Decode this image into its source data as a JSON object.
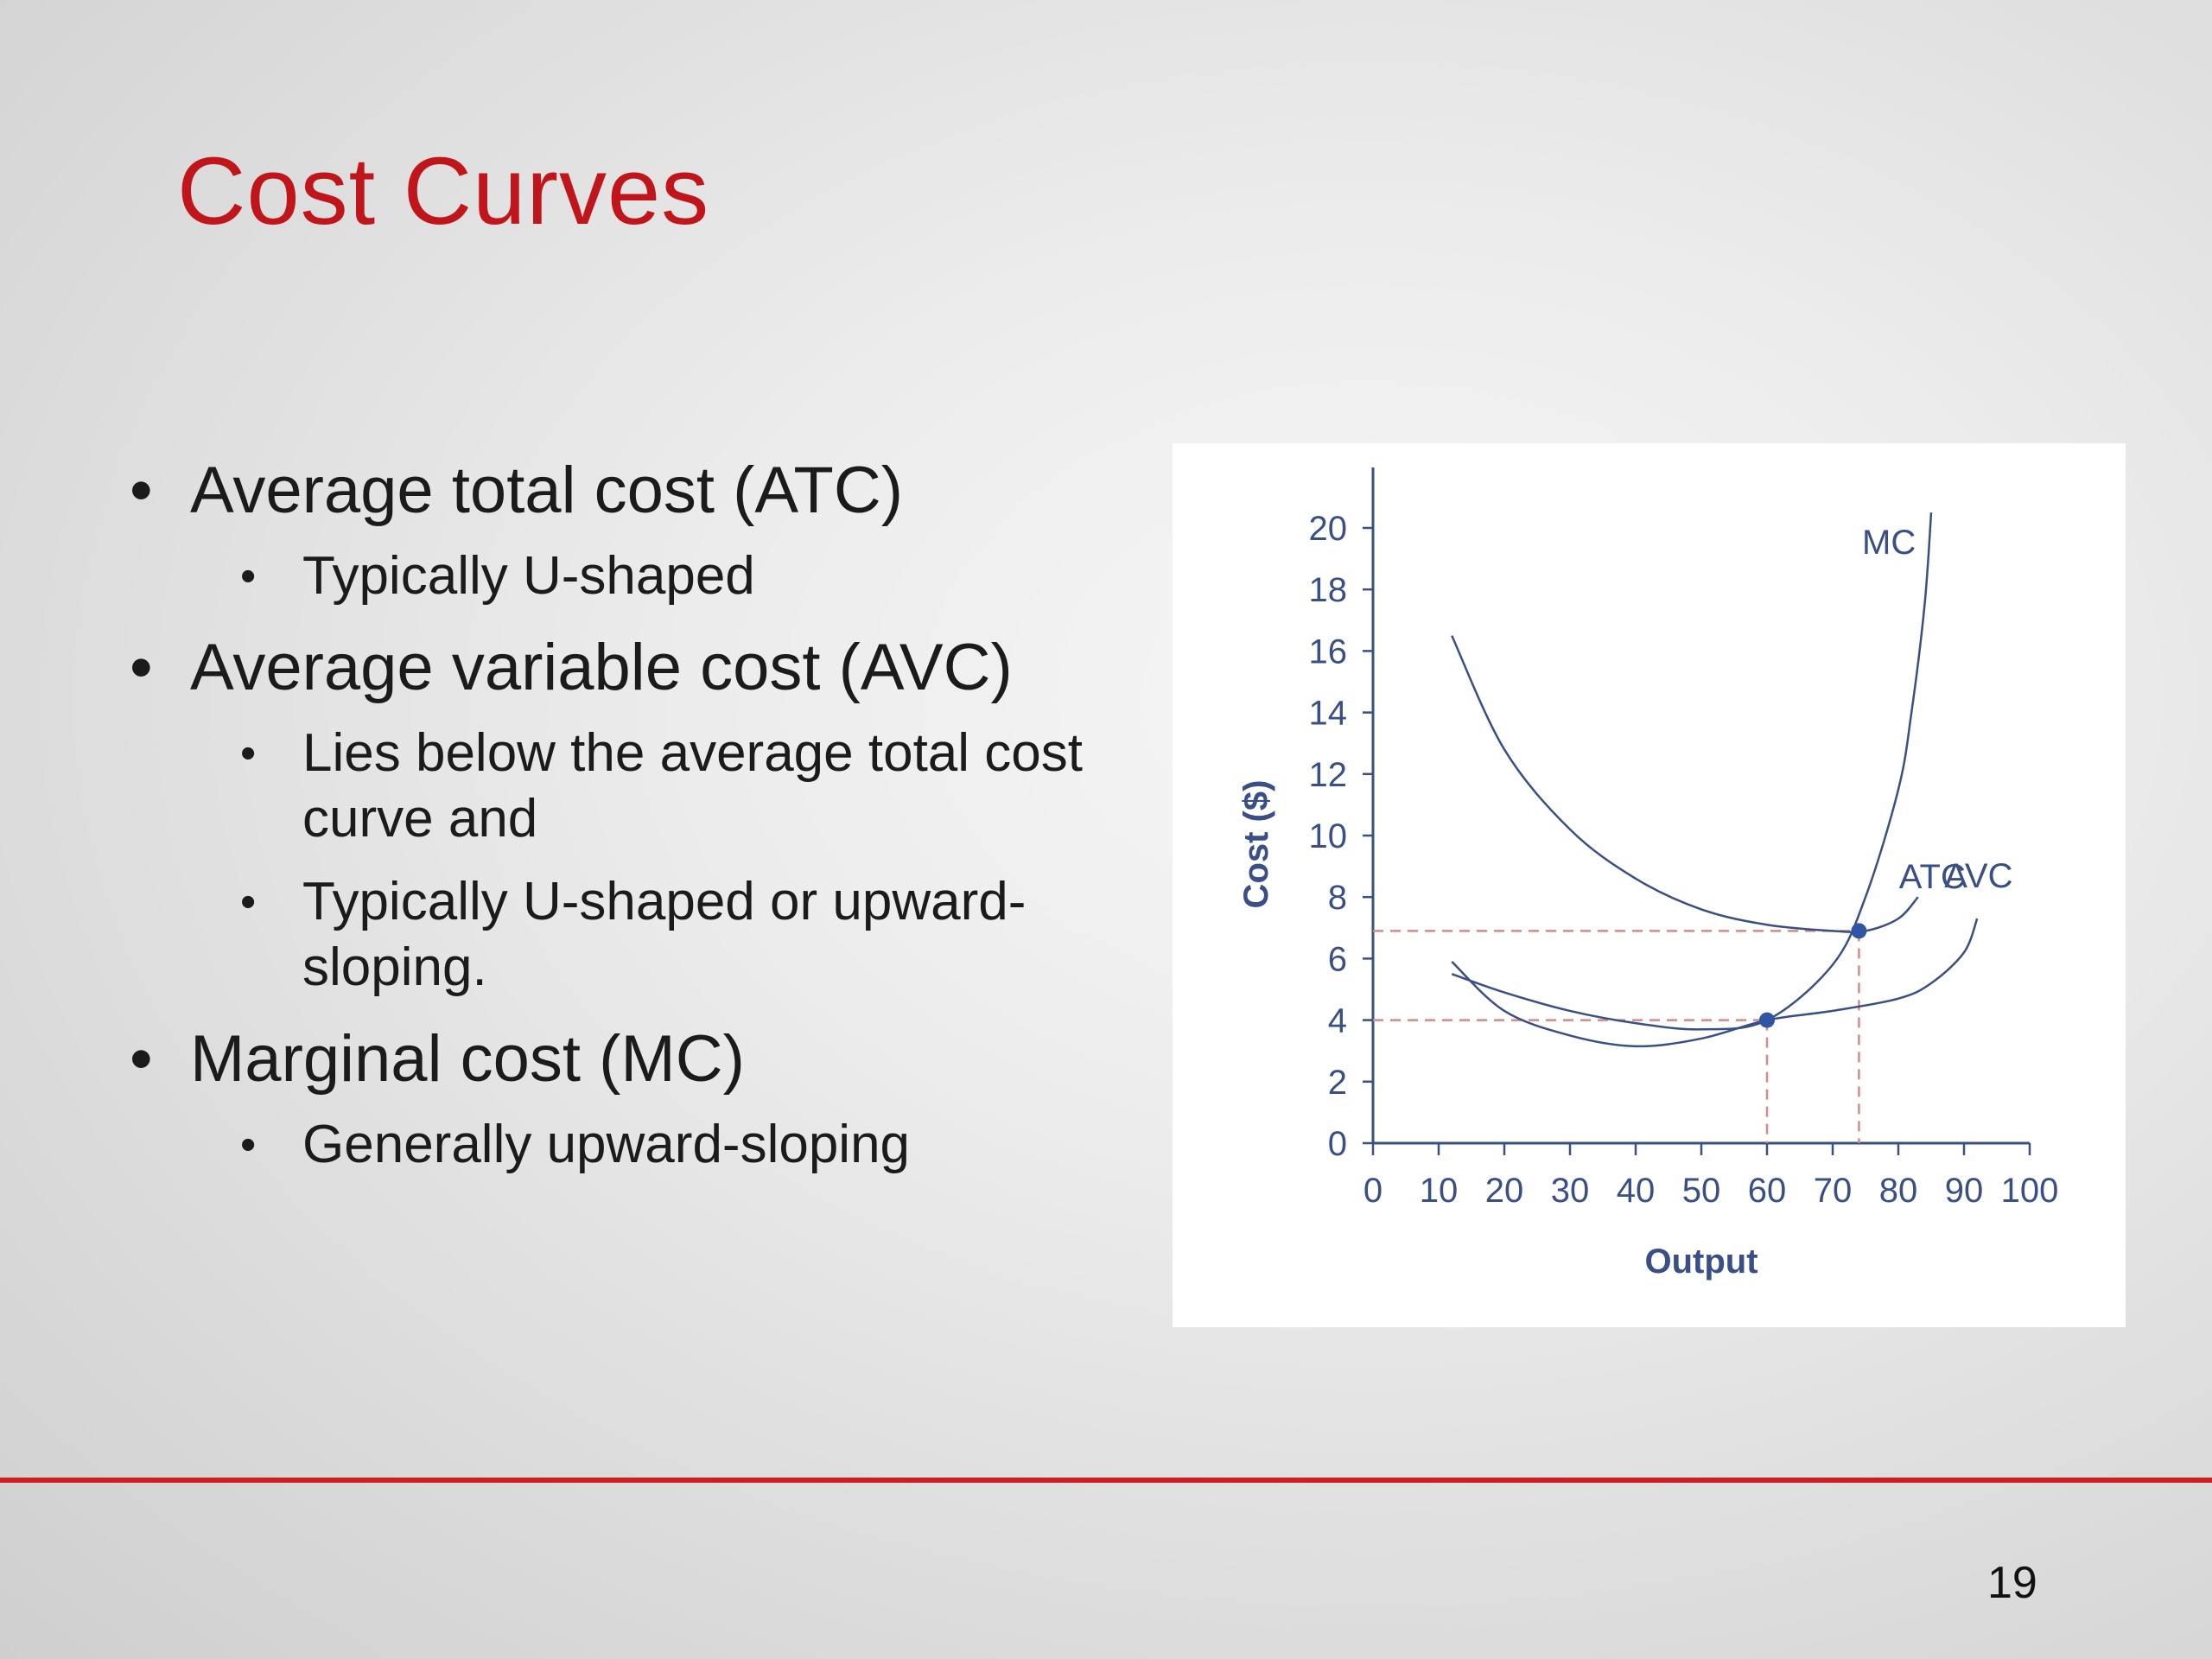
{
  "slide": {
    "title": "Cost Curves",
    "page_number": "19",
    "bullets": [
      {
        "text": "Average total cost (ATC)",
        "sub": [
          "Typically U-shaped"
        ]
      },
      {
        "text": "Average variable cost (AVC)",
        "sub": [
          "Lies below the average total cost curve and",
          "Typically U-shaped or upward-sloping."
        ]
      },
      {
        "text": "Marginal cost (MC)",
        "sub": [
          "Generally upward-sloping"
        ]
      }
    ],
    "colors": {
      "title": "#c0161b",
      "footer_line": "#cc1f22",
      "chart_ink": "#3a4f86",
      "point": "#2f55a4",
      "guide": "#d48a8a"
    }
  },
  "chart_data": {
    "type": "line",
    "xlabel": "Output",
    "ylabel": "Cost ($)",
    "xlim": [
      0,
      100
    ],
    "ylim": [
      0,
      20
    ],
    "x_ticks": [
      0,
      10,
      20,
      30,
      40,
      50,
      60,
      70,
      80,
      90,
      100
    ],
    "y_ticks": [
      0,
      2,
      4,
      6,
      8,
      10,
      12,
      14,
      16,
      18,
      20
    ],
    "grid": false,
    "series": [
      {
        "name": "MC",
        "x": [
          12,
          20,
          30,
          40,
          50,
          60,
          70,
          75,
          80,
          82,
          84,
          85
        ],
        "y": [
          5.5,
          4.9,
          4.3,
          3.9,
          3.7,
          4.0,
          5.8,
          8.0,
          11.5,
          14.0,
          17.5,
          20.5
        ]
      },
      {
        "name": "ATC",
        "x": [
          12,
          20,
          30,
          40,
          50,
          60,
          70,
          75,
          80,
          83
        ],
        "y": [
          16.5,
          12.8,
          10.2,
          8.6,
          7.6,
          7.1,
          6.9,
          6.9,
          7.3,
          8.0
        ]
      },
      {
        "name": "AVC",
        "x": [
          12,
          20,
          30,
          40,
          50,
          60,
          70,
          80,
          85,
          90,
          92
        ],
        "y": [
          5.9,
          4.3,
          3.5,
          3.15,
          3.4,
          4.0,
          4.3,
          4.7,
          5.2,
          6.2,
          7.3
        ]
      }
    ],
    "points": [
      {
        "x": 60,
        "y": 4.0
      },
      {
        "x": 74,
        "y": 6.9
      }
    ],
    "guides": [
      {
        "x": 60,
        "y": 4.0
      },
      {
        "x": 74,
        "y": 6.9
      }
    ]
  }
}
